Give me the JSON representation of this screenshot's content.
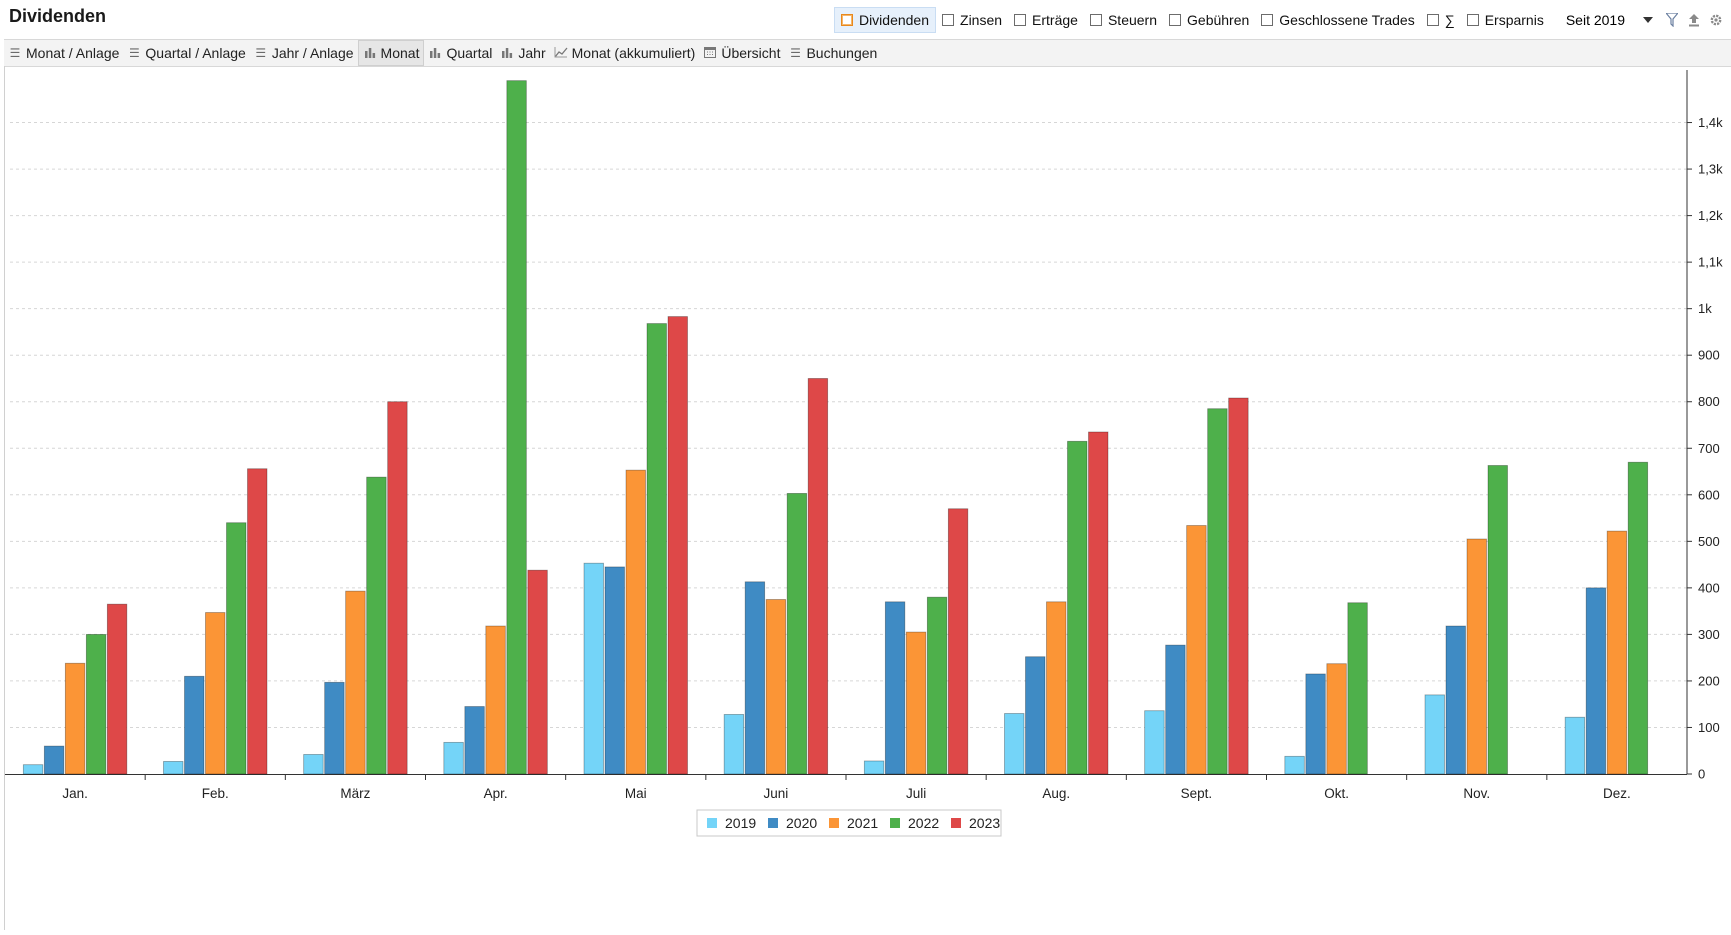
{
  "header": {
    "title": "Dividenden"
  },
  "filters": [
    {
      "label": "Dividenden",
      "checked": true
    },
    {
      "label": "Zinsen",
      "checked": false
    },
    {
      "label": "Erträge",
      "checked": false
    },
    {
      "label": "Steuern",
      "checked": false
    },
    {
      "label": "Gebühren",
      "checked": false
    },
    {
      "label": "Geschlossene Trades",
      "checked": false
    },
    {
      "label": "∑",
      "checked": false
    },
    {
      "label": "Ersparnis",
      "checked": false
    }
  ],
  "period": {
    "selected": "Seit 2019"
  },
  "toolbar_icons": [
    "filter-icon",
    "export-icon",
    "gear-icon"
  ],
  "tabs": [
    {
      "label": "Monat / Anlage",
      "icon": "list-icon"
    },
    {
      "label": "Quartal / Anlage",
      "icon": "list-icon"
    },
    {
      "label": "Jahr / Anlage",
      "icon": "list-icon"
    },
    {
      "label": "Monat",
      "icon": "bar-chart-icon",
      "active": true
    },
    {
      "label": "Quartal",
      "icon": "bar-chart-icon"
    },
    {
      "label": "Jahr",
      "icon": "bar-chart-icon"
    },
    {
      "label": "Monat (akkumuliert)",
      "icon": "line-chart-icon"
    },
    {
      "label": "Übersicht",
      "icon": "calendar-icon"
    },
    {
      "label": "Buchungen",
      "icon": "list-icon"
    }
  ],
  "chart_data": {
    "type": "bar",
    "categories": [
      "Jan.",
      "Feb.",
      "März",
      "Apr.",
      "Mai",
      "Juni",
      "Juli",
      "Aug.",
      "Sept.",
      "Okt.",
      "Nov.",
      "Dez."
    ],
    "series": [
      {
        "name": "2019",
        "color": "#74d4f8",
        "values": [
          20,
          27,
          42,
          68,
          453,
          128,
          28,
          130,
          136,
          38,
          170,
          122
        ]
      },
      {
        "name": "2020",
        "color": "#3f8bc4",
        "values": [
          60,
          210,
          197,
          145,
          445,
          413,
          370,
          252,
          277,
          215,
          318,
          400
        ]
      },
      {
        "name": "2021",
        "color": "#fb9536",
        "values": [
          238,
          347,
          393,
          318,
          653,
          375,
          305,
          370,
          534,
          237,
          505,
          522
        ]
      },
      {
        "name": "2022",
        "color": "#4eb04b",
        "values": [
          300,
          540,
          638,
          1490,
          968,
          603,
          380,
          715,
          785,
          368,
          663,
          670
        ]
      },
      {
        "name": "2023",
        "color": "#de4848",
        "values": [
          365,
          656,
          800,
          438,
          983,
          850,
          570,
          735,
          808,
          null,
          null,
          null
        ]
      }
    ],
    "ylim": [
      0,
      1500
    ],
    "yticks": [
      0,
      100,
      200,
      300,
      400,
      500,
      600,
      700,
      800,
      900,
      1000,
      1100,
      1200,
      1300,
      1400
    ],
    "ytick_labels": [
      "0",
      "100",
      "200",
      "300",
      "400",
      "500",
      "600",
      "700",
      "800",
      "900",
      "1k",
      "1,1k",
      "1,2k",
      "1,3k",
      "1,4k"
    ],
    "y_axis_position": "right",
    "grid": true,
    "legend": "bottom-center"
  }
}
